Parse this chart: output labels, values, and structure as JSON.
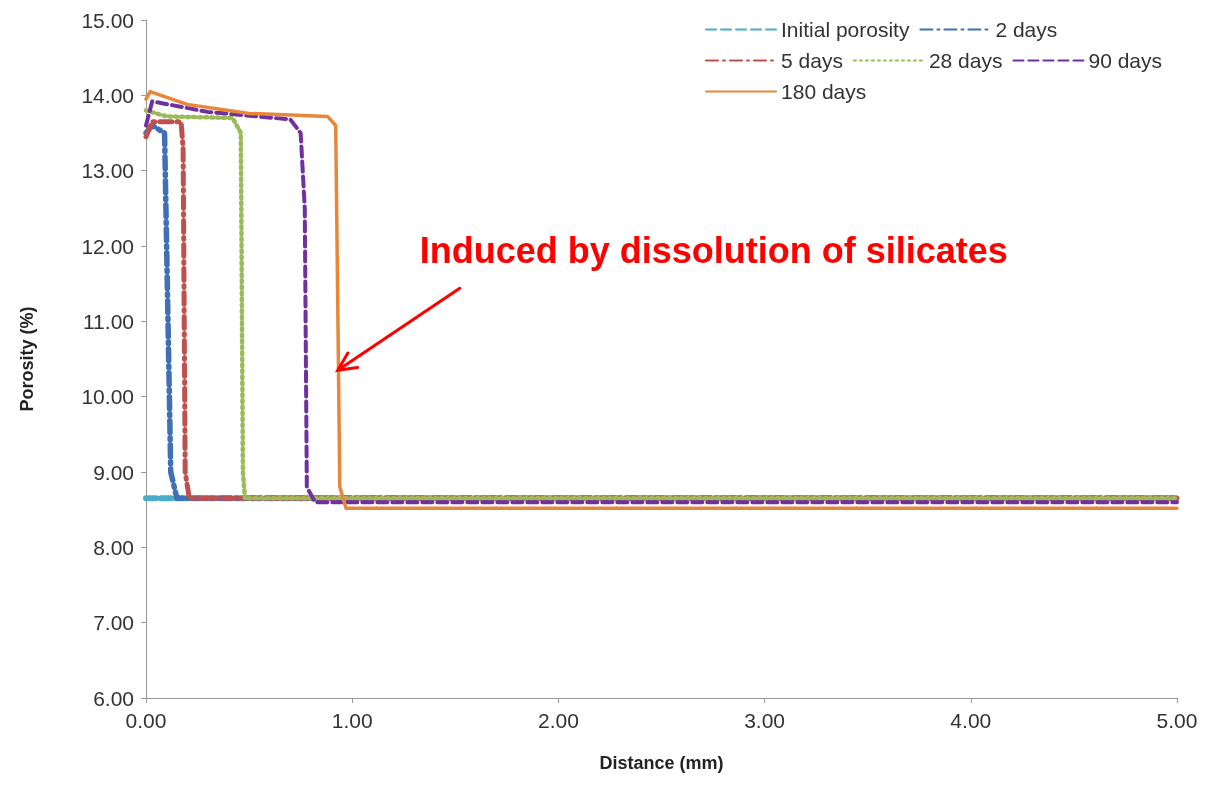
{
  "chart_data": {
    "type": "line",
    "xlabel": "Distance (mm)",
    "ylabel": "Porosity (%)",
    "xlim": [
      0,
      5
    ],
    "xticks": [
      {
        "value": 0,
        "label": "0.00"
      },
      {
        "value": 1,
        "label": "1.00"
      },
      {
        "value": 2,
        "label": "2.00"
      },
      {
        "value": 3,
        "label": "3.00"
      },
      {
        "value": 4,
        "label": "4.00"
      },
      {
        "value": 5,
        "label": "5.00"
      }
    ],
    "ylim": [
      6,
      15
    ],
    "yticks": [
      {
        "value": 6,
        "label": "6.00"
      },
      {
        "value": 7,
        "label": "7.00"
      },
      {
        "value": 8,
        "label": "8.00"
      },
      {
        "value": 9,
        "label": "9.00"
      },
      {
        "value": 10,
        "label": "10.00"
      },
      {
        "value": 11,
        "label": "11.00"
      },
      {
        "value": 12,
        "label": "12.00"
      },
      {
        "value": 13,
        "label": "13.00"
      },
      {
        "value": 14,
        "label": "14.00"
      },
      {
        "value": 15,
        "label": "15.00"
      }
    ],
    "grid": false,
    "legend": "top right",
    "marker": "none",
    "series": [
      {
        "name": "Initial porosity",
        "color": "#4bacc6",
        "line_style": "dashed",
        "x": [
          0,
          5
        ],
        "values": [
          8.65,
          8.65
        ]
      },
      {
        "name": "2 days",
        "color": "#3f6fb5",
        "line_style": "dashdot",
        "x": [
          0,
          0.03,
          0.09,
          0.12,
          0.15,
          5
        ],
        "values": [
          13.5,
          13.6,
          13.5,
          9.0,
          8.65,
          8.65
        ]
      },
      {
        "name": "5 days",
        "color": "#c0504d",
        "line_style": "dashdot",
        "x": [
          0,
          0.03,
          0.17,
          0.18,
          0.19,
          0.21,
          5
        ],
        "values": [
          13.45,
          13.65,
          13.65,
          13.3,
          9.0,
          8.65,
          8.65
        ]
      },
      {
        "name": "28 days",
        "color": "#9bbb59",
        "line_style": "dotted",
        "x": [
          0,
          0.1,
          0.42,
          0.46,
          0.47,
          0.48,
          5
        ],
        "values": [
          13.8,
          13.72,
          13.7,
          13.5,
          9.0,
          8.65,
          8.65
        ]
      },
      {
        "name": "90 days",
        "color": "#7030a0",
        "line_style": "dashed",
        "x": [
          0,
          0.03,
          0.3,
          0.7,
          0.75,
          0.77,
          0.78,
          0.82,
          5
        ],
        "values": [
          13.6,
          13.92,
          13.78,
          13.68,
          13.5,
          12.5,
          8.8,
          8.6,
          8.6
        ]
      },
      {
        "name": "180 days",
        "color": "#e8873a",
        "line_style": "solid",
        "x": [
          0,
          0.02,
          0.2,
          0.5,
          0.88,
          0.92,
          0.94,
          0.97,
          5
        ],
        "values": [
          13.95,
          14.05,
          13.88,
          13.76,
          13.72,
          13.6,
          8.8,
          8.52,
          8.52
        ]
      }
    ],
    "annotations": [
      {
        "text": "Induced by dissolution of silicates",
        "x": 0.93,
        "y": 10.35
      }
    ]
  }
}
